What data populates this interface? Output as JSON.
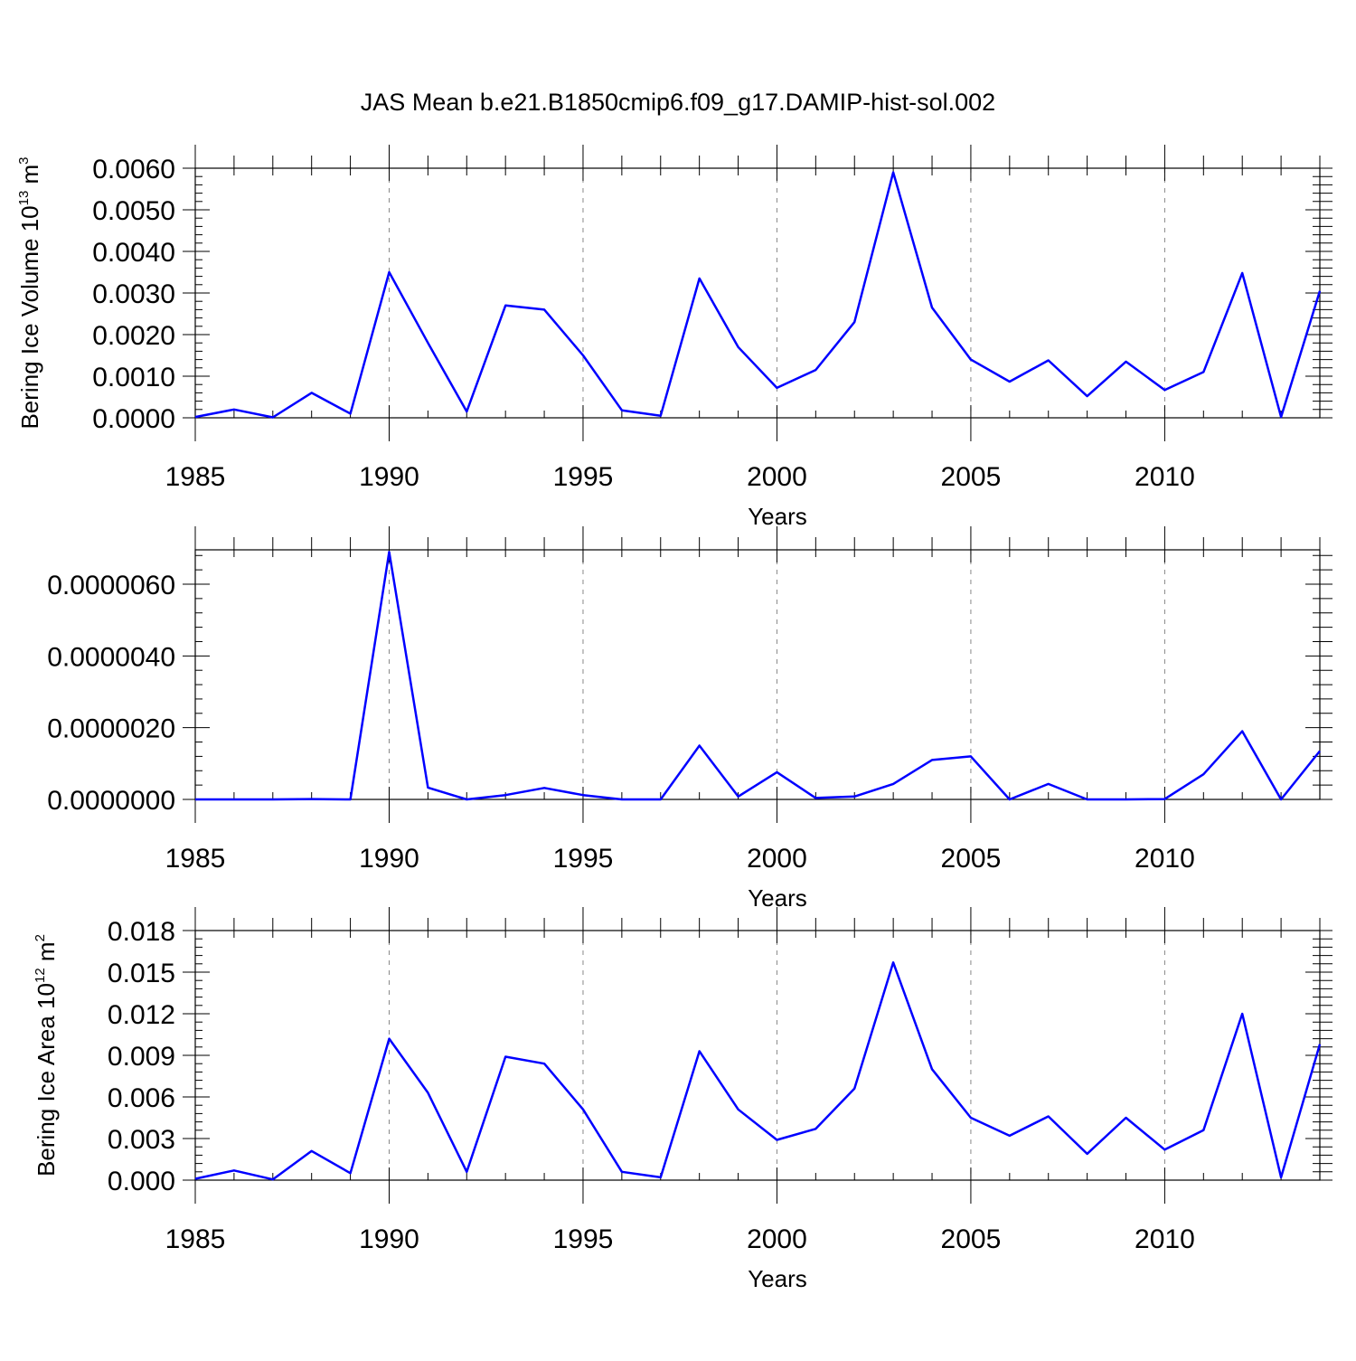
{
  "figure": {
    "title": "JAS Mean b.e21.B1850cmip6.f09_g17.DAMIP-hist-sol.002"
  },
  "colors": {
    "series": "#0000ff",
    "grid": "#888888",
    "axes": "#000000"
  },
  "chart_data": [
    {
      "type": "line",
      "title": "JAS Mean b.e21.B1850cmip6.f09_g17.DAMIP-hist-sol.002",
      "xlabel": "Years",
      "ylabel": "Bering Ice Volume 10",
      "ylabel_exp": "13",
      "ylabel_unit": " m",
      "ylabel_unit_exp": "3",
      "xlim": [
        1985,
        2014
      ],
      "ylim": [
        0,
        0.006
      ],
      "xticks": [
        1985,
        1990,
        1995,
        2000,
        2005,
        2010
      ],
      "xtick_labels": [
        "1985",
        "1990",
        "1995",
        "2000",
        "2005",
        "2010"
      ],
      "yticks": [
        0,
        0.001,
        0.002,
        0.003,
        0.004,
        0.005,
        0.006
      ],
      "ytick_labels": [
        "0.0000",
        "0.0010",
        "0.0020",
        "0.0030",
        "0.0040",
        "0.0050",
        "0.0060"
      ],
      "grid": "vertical dashed at major x ticks",
      "x": [
        1985,
        1986,
        1987,
        1988,
        1989,
        1990,
        1991,
        1992,
        1993,
        1994,
        1995,
        1996,
        1997,
        1998,
        1999,
        2000,
        2001,
        2002,
        2003,
        2004,
        2005,
        2006,
        2007,
        2008,
        2009,
        2010,
        2011,
        2012,
        2013,
        2014
      ],
      "values": [
        2e-05,
        0.0002,
        1e-05,
        0.0006,
        0.0001,
        0.0035,
        0.0018,
        0.00015,
        0.0027,
        0.0026,
        0.0015,
        0.00018,
        5e-05,
        0.00335,
        0.0017,
        0.00072,
        0.00115,
        0.0023,
        0.0059,
        0.00265,
        0.0014,
        0.00087,
        0.00138,
        0.00052,
        0.00135,
        0.00067,
        0.0011,
        0.00348,
        2e-05,
        0.00305
      ]
    },
    {
      "type": "line",
      "xlabel": "Years",
      "ylabel": "",
      "xlim": [
        1985,
        2014
      ],
      "ylim": [
        0,
        7e-06
      ],
      "xticks": [
        1985,
        1990,
        1995,
        2000,
        2005,
        2010
      ],
      "xtick_labels": [
        "1985",
        "1990",
        "1995",
        "2000",
        "2005",
        "2010"
      ],
      "yticks": [
        0,
        2e-06,
        4e-06,
        6e-06
      ],
      "ytick_labels": [
        "0.0000000",
        "0.0000020",
        "0.0000040",
        "0.0000060"
      ],
      "grid": "vertical dashed at major x ticks",
      "x": [
        1985,
        1986,
        1987,
        1988,
        1989,
        1990,
        1991,
        1992,
        1993,
        1994,
        1995,
        1996,
        1997,
        1998,
        1999,
        2000,
        2001,
        2002,
        2003,
        2004,
        2005,
        2006,
        2007,
        2008,
        2009,
        2010,
        2011,
        2012,
        2013,
        2014
      ],
      "values": [
        0.0,
        0.0,
        0.0,
        1e-08,
        0.0,
        6.9e-06,
        3.3e-07,
        0.0,
        1.2e-07,
        3.2e-07,
        1.2e-07,
        0.0,
        0.0,
        1.5e-06,
        8e-08,
        7.6e-07,
        4e-08,
        8e-08,
        4.3e-07,
        1.1e-06,
        1.2e-06,
        0.0,
        4.3e-07,
        0.0,
        0.0,
        1e-08,
        7e-07,
        1.9e-06,
        0.0,
        1.35e-06
      ]
    },
    {
      "type": "line",
      "xlabel": "Years",
      "ylabel": "Bering Ice Area 10",
      "ylabel_exp": "12",
      "ylabel_unit": " m",
      "ylabel_unit_exp": "2",
      "xlim": [
        1985,
        2014
      ],
      "ylim": [
        0,
        0.018
      ],
      "xticks": [
        1985,
        1990,
        1995,
        2000,
        2005,
        2010
      ],
      "xtick_labels": [
        "1985",
        "1990",
        "1995",
        "2000",
        "2005",
        "2010"
      ],
      "yticks": [
        0,
        0.003,
        0.006,
        0.009,
        0.012,
        0.015,
        0.018
      ],
      "ytick_labels": [
        "0.000",
        "0.003",
        "0.006",
        "0.009",
        "0.012",
        "0.015",
        "0.018"
      ],
      "grid": "vertical dashed at major x ticks",
      "x": [
        1985,
        1986,
        1987,
        1988,
        1989,
        1990,
        1991,
        1992,
        1993,
        1994,
        1995,
        1996,
        1997,
        1998,
        1999,
        2000,
        2001,
        2002,
        2003,
        2004,
        2005,
        2006,
        2007,
        2008,
        2009,
        2010,
        2011,
        2012,
        2013,
        2014
      ],
      "values": [
        0.0001,
        0.0007,
        5e-05,
        0.0021,
        0.0005,
        0.0102,
        0.0063,
        0.0006,
        0.0089,
        0.0084,
        0.0051,
        0.0006,
        0.0002,
        0.0093,
        0.0051,
        0.0029,
        0.0037,
        0.0066,
        0.0157,
        0.008,
        0.0045,
        0.0032,
        0.0046,
        0.0019,
        0.0045,
        0.0022,
        0.0036,
        0.012,
        0.0002,
        0.0098
      ]
    }
  ]
}
